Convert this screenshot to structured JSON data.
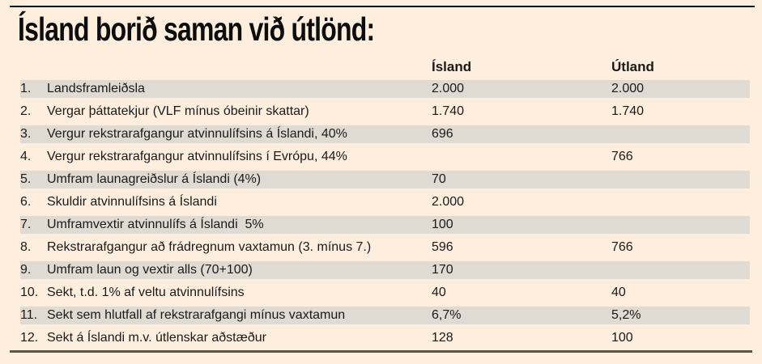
{
  "title": "Ísland borið saman við útlönd:",
  "colors": {
    "background": "#fdeedd",
    "row_stripe": "#dfdbd2",
    "text": "#1a1a1a",
    "top_rule": "#121212",
    "bottom_rule": "#5a544d"
  },
  "table": {
    "columns": {
      "island": "Ísland",
      "utland": "Útland"
    },
    "rows": [
      {
        "num": "1.",
        "label": "Landsframleiðsla",
        "island": "2.000",
        "utland": "2.000"
      },
      {
        "num": "2.",
        "label": "Vergar þáttatekjur (VLF mínus óbeinir skattar)",
        "island": "1.740",
        "utland": "1.740"
      },
      {
        "num": "3.",
        "label": "Vergur rekstrarafgangur atvinnulífsins á Íslandi, 40%",
        "island": "696",
        "utland": ""
      },
      {
        "num": "4.",
        "label": "Vergur rekstrarafgangur atvinnulífsins í Evrópu, 44%",
        "island": "",
        "utland": "766"
      },
      {
        "num": "5.",
        "label": "Umfram launagreiðslur á Íslandi (4%)",
        "island": "70",
        "utland": ""
      },
      {
        "num": "6.",
        "label": "Skuldir atvinnulífsins á Íslandi",
        "island": "2.000",
        "utland": ""
      },
      {
        "num": "7.",
        "label": "Umframvextir atvinnulífs á Íslandi  5%",
        "island": "100",
        "utland": ""
      },
      {
        "num": "8.",
        "label": "Rekstrarafgangur að frádregnum vaxtamun (3. mínus 7.)",
        "island": "596",
        "utland": "766"
      },
      {
        "num": "9.",
        "label": "Umfram laun og vextir alls (70+100)",
        "island": "170",
        "utland": ""
      },
      {
        "num": "10.",
        "label": "Sekt, t.d. 1% af veltu atvinnulífsins",
        "island": "40",
        "utland": "40"
      },
      {
        "num": "11.",
        "label": "Sekt sem hlutfall af rekstrarafgangi mínus vaxtamun",
        "island": "6,7%",
        "utland": "5,2%"
      },
      {
        "num": "12.",
        "label": "Sekt á Íslandi m.v. útlenskar aðstæður",
        "island": "128",
        "utland": "100"
      }
    ]
  }
}
